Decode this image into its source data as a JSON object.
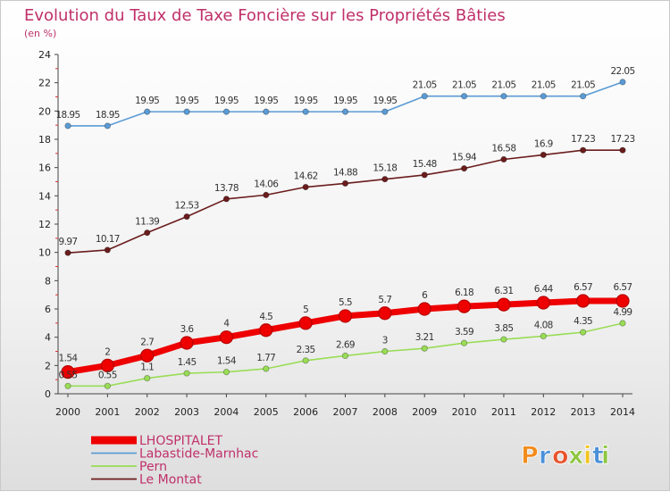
{
  "chart_data": {
    "type": "line",
    "title": "Evolution du Taux de Taxe Foncière sur les Propriétés Bâties",
    "subtitle": "(en %)",
    "xlabel": "",
    "ylabel": "",
    "x": [
      "2000",
      "2001",
      "2002",
      "2003",
      "2004",
      "2005",
      "2006",
      "2007",
      "2008",
      "2009",
      "2010",
      "2011",
      "2012",
      "2013",
      "2014"
    ],
    "ylim": [
      0,
      24
    ],
    "yticks": [
      "0",
      "2",
      "4",
      "6",
      "8",
      "10",
      "12",
      "14",
      "16",
      "18",
      "20",
      "22",
      "24"
    ],
    "grid": false,
    "legend_position": "bottom-left",
    "series": [
      {
        "name": "LHOSPITALET",
        "color": "#ee0000",
        "values": [
          1.54,
          2,
          2.7,
          3.6,
          4,
          4.5,
          5,
          5.5,
          5.7,
          6,
          6.18,
          6.31,
          6.44,
          6.57,
          6.57
        ],
        "labels": [
          "1.54",
          "2",
          "2.7",
          "3.6",
          "4",
          "4.5",
          "5",
          "5.5",
          "5.7",
          "6",
          "6.18",
          "6.31",
          "6.44",
          "6.57",
          "6.57"
        ]
      },
      {
        "name": "Labastide-Marnhac",
        "color": "#5b9bd5",
        "values": [
          18.95,
          18.95,
          19.95,
          19.95,
          19.95,
          19.95,
          19.95,
          19.95,
          19.95,
          21.05,
          21.05,
          21.05,
          21.05,
          21.05,
          22.05
        ],
        "labels": [
          "18.95",
          "18.95",
          "19.95",
          "19.95",
          "19.95",
          "19.95",
          "19.95",
          "19.95",
          "19.95",
          "21.05",
          "21.05",
          "21.05",
          "21.05",
          "21.05",
          "22.05"
        ]
      },
      {
        "name": "Pern",
        "color": "#99dd55",
        "values": [
          0.55,
          0.55,
          1.1,
          1.45,
          1.54,
          1.77,
          2.35,
          2.69,
          3,
          3.21,
          3.59,
          3.85,
          4.08,
          4.35,
          4.99
        ],
        "labels": [
          "0.55",
          "0.55",
          "1.1",
          "1.45",
          "1.54",
          "1.77",
          "2.35",
          "2.69",
          "3",
          "3.21",
          "3.59",
          "3.85",
          "4.08",
          "4.35",
          "4.99"
        ]
      },
      {
        "name": "Le Montat",
        "color": "#6b1c1c",
        "values": [
          9.97,
          10.17,
          11.39,
          12.53,
          13.78,
          14.06,
          14.62,
          14.88,
          15.18,
          15.48,
          15.94,
          16.58,
          16.9,
          17.23,
          17.23
        ],
        "labels": [
          "9.97",
          "10.17",
          "11.39",
          "12.53",
          "13.78",
          "14.06",
          "14.62",
          "14.88",
          "15.18",
          "15.48",
          "15.94",
          "16.58",
          "16.9",
          "17.23",
          "17.23"
        ]
      }
    ]
  },
  "logo": {
    "text": "Proxiti",
    "letter_colors": [
      "#f28c1e",
      "#4a90d9",
      "#e8532d",
      "#8cc63f",
      "#f2c41e",
      "#4a90d9",
      "#8cc63f"
    ]
  }
}
